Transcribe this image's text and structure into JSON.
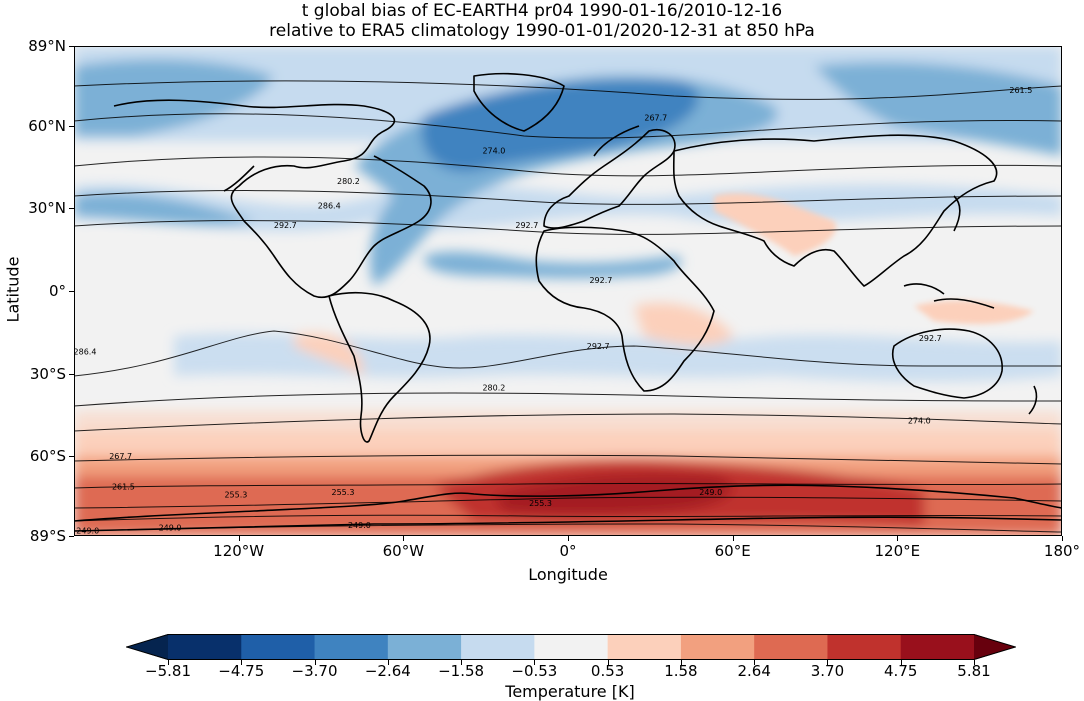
{
  "title_line1": "t global bias of EC-EARTH4 pr04 1990-01-16/2010-12-16",
  "title_line2": "relative to ERA5 climatology 1990-01-01/2020-12-31 at 850 hPa",
  "chart_data": {
    "type": "heatmap",
    "projection": "PlateCarree",
    "xlabel": "Longitude",
    "ylabel": "Latitude",
    "xlim": [
      -180,
      180
    ],
    "ylim": [
      -89,
      89
    ],
    "x_ticks": [
      {
        "value": -120,
        "label": "120°W"
      },
      {
        "value": -60,
        "label": "60°W"
      },
      {
        "value": 0,
        "label": "0°"
      },
      {
        "value": 60,
        "label": "60°E"
      },
      {
        "value": 120,
        "label": "120°E"
      },
      {
        "value": 180,
        "label": "180°"
      }
    ],
    "y_ticks": [
      {
        "value": 89,
        "label": "89°N"
      },
      {
        "value": 60,
        "label": "60°N"
      },
      {
        "value": 30,
        "label": "30°N"
      },
      {
        "value": 0,
        "label": "0°"
      },
      {
        "value": -30,
        "label": "30°S"
      },
      {
        "value": -60,
        "label": "60°S"
      },
      {
        "value": -89,
        "label": "89°S"
      }
    ],
    "colorbar": {
      "title": "Temperature [K]",
      "levels": [
        "−5.81",
        "−4.75",
        "−3.70",
        "−2.64",
        "−1.58",
        "−0.53",
        "0.53",
        "1.58",
        "2.64",
        "3.70",
        "4.75",
        "5.81"
      ],
      "colors": [
        "#08306b",
        "#1f5fa8",
        "#3f83c0",
        "#7bb0d6",
        "#c6dbef",
        "#f2f2f2",
        "#fcd0bb",
        "#f2a07f",
        "#de6a52",
        "#c0322d",
        "#99101c"
      ],
      "extend": "both",
      "under_color": "#05244f",
      "over_color": "#67000d"
    },
    "contour_labels": [
      {
        "label": "261.5",
        "lon": 165,
        "lat": 73
      },
      {
        "label": "267.7",
        "lon": 32,
        "lat": 63
      },
      {
        "label": "274.0",
        "lon": -27,
        "lat": 51
      },
      {
        "label": "280.2",
        "lon": -80,
        "lat": 40
      },
      {
        "label": "286.4",
        "lon": -87,
        "lat": 31
      },
      {
        "label": "292.7",
        "lon": -103,
        "lat": 24
      },
      {
        "label": "292.7",
        "lon": -15,
        "lat": 24
      },
      {
        "label": "292.7",
        "lon": 12,
        "lat": 4
      },
      {
        "label": "292.7",
        "lon": 11,
        "lat": -20
      },
      {
        "label": "292.7",
        "lon": 132,
        "lat": -17
      },
      {
        "label": "286.4",
        "lon": -176,
        "lat": -22
      },
      {
        "label": "280.2",
        "lon": -27,
        "lat": -35
      },
      {
        "label": "274.0",
        "lon": 128,
        "lat": -47
      },
      {
        "label": "267.7",
        "lon": -163,
        "lat": -60
      },
      {
        "label": "261.5",
        "lon": -162,
        "lat": -71
      },
      {
        "label": "255.3",
        "lon": -121,
        "lat": -74
      },
      {
        "label": "255.3",
        "lon": -82,
        "lat": -73
      },
      {
        "label": "255.3",
        "lon": -10,
        "lat": -77
      },
      {
        "label": "249.0",
        "lon": 52,
        "lat": -73
      },
      {
        "label": "249.0",
        "lon": -175,
        "lat": -87
      },
      {
        "label": "249.0",
        "lon": -145,
        "lat": -86
      },
      {
        "label": "249.0",
        "lon": -76,
        "lat": -85
      }
    ]
  }
}
